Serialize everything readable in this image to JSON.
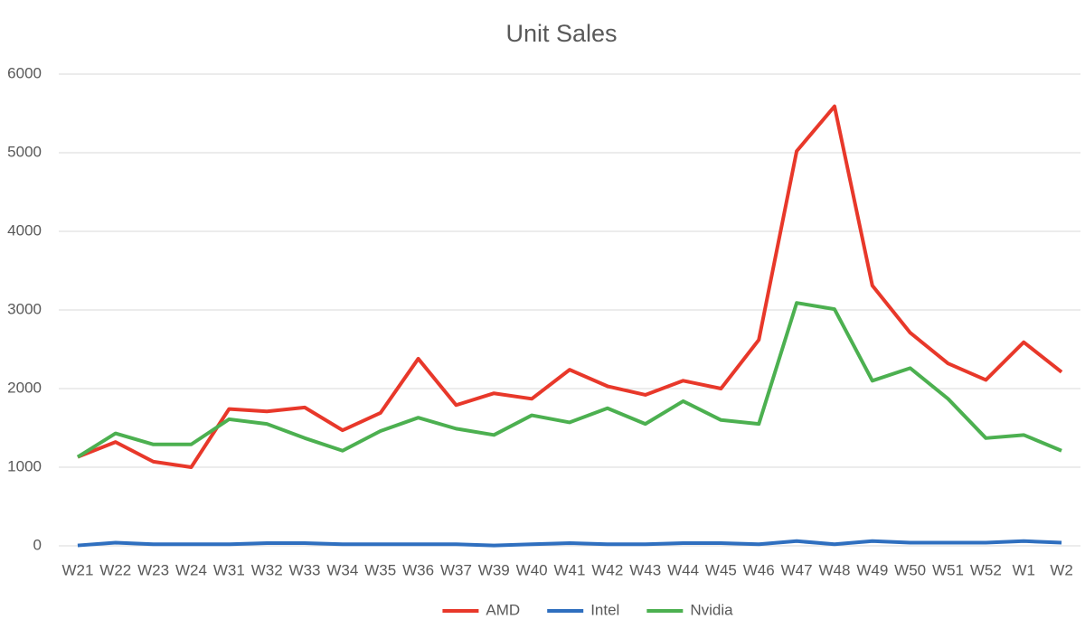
{
  "chart_data": {
    "type": "line",
    "title": "Unit Sales",
    "categories": [
      "W21",
      "W22",
      "W23",
      "W24",
      "W31",
      "W32",
      "W33",
      "W34",
      "W35",
      "W36",
      "W37",
      "W39",
      "W40",
      "W41",
      "W42",
      "W43",
      "W44",
      "W45",
      "W46",
      "W47",
      "W48",
      "W49",
      "W50",
      "W51",
      "W52",
      "W1",
      "W2"
    ],
    "series": [
      {
        "name": "AMD",
        "color": "#e8382a",
        "values": [
          1130,
          1320,
          1070,
          1000,
          1740,
          1710,
          1760,
          1470,
          1690,
          2380,
          1790,
          1940,
          1870,
          2240,
          2030,
          1920,
          2100,
          2000,
          2620,
          5020,
          5590,
          3310,
          2710,
          2320,
          2110,
          2590,
          2210
        ]
      },
      {
        "name": "Intel",
        "color": "#2f6fbf",
        "values": [
          5,
          40,
          20,
          20,
          20,
          35,
          35,
          20,
          20,
          20,
          20,
          5,
          20,
          35,
          20,
          20,
          35,
          35,
          20,
          60,
          20,
          60,
          40,
          40,
          40,
          60,
          40
        ]
      },
      {
        "name": "Nvidia",
        "color": "#4cb050",
        "values": [
          1130,
          1430,
          1290,
          1290,
          1610,
          1550,
          1370,
          1210,
          1460,
          1630,
          1490,
          1410,
          1660,
          1570,
          1750,
          1550,
          1840,
          1600,
          1550,
          3090,
          3010,
          2100,
          2260,
          1870,
          1370,
          1410,
          1210
        ]
      }
    ],
    "ylim": [
      0,
      6000
    ],
    "yticks": [
      0,
      1000,
      2000,
      3000,
      4000,
      5000,
      6000
    ],
    "grid": true,
    "legend": "bottom"
  }
}
